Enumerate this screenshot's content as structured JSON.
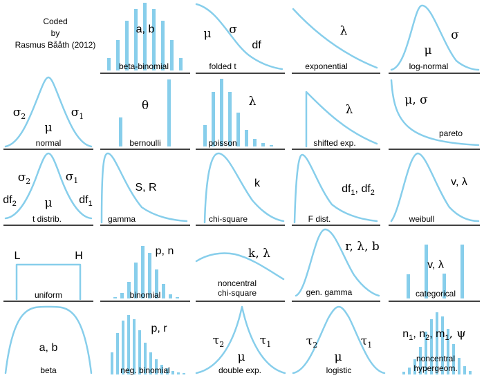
{
  "credit": {
    "line1": "Coded",
    "line2": "by",
    "line3": "Rasmus Bååth (2012)"
  },
  "colors": {
    "shape": "#87CEEB",
    "text": "#000000",
    "line": "#000000"
  },
  "cells": [
    {
      "id": "beta-binomial",
      "label": "beta-binomial",
      "params": [
        {
          "t": "a, b"
        }
      ]
    },
    {
      "id": "folded-t",
      "label": "folded t",
      "params": [
        {
          "t": "μ"
        },
        {
          "t": "σ"
        },
        {
          "t": "df"
        }
      ]
    },
    {
      "id": "exponential",
      "label": "exponential",
      "params": [
        {
          "t": "λ"
        }
      ]
    },
    {
      "id": "log-normal",
      "label": "log-normal",
      "params": [
        {
          "t": "μ"
        },
        {
          "t": "σ"
        }
      ]
    },
    {
      "id": "normal",
      "label": "normal",
      "params": [
        {
          "t": "σ",
          "sub": "2"
        },
        {
          "t": "σ",
          "sub": "1"
        },
        {
          "t": "μ"
        }
      ]
    },
    {
      "id": "bernoulli",
      "label": "bernoulli",
      "params": [
        {
          "t": "θ"
        }
      ]
    },
    {
      "id": "poisson",
      "label": "poisson",
      "params": [
        {
          "t": "λ"
        }
      ]
    },
    {
      "id": "shifted-exp",
      "label": "shifted exp.",
      "params": [
        {
          "t": "λ"
        }
      ]
    },
    {
      "id": "pareto",
      "label": "pareto",
      "params": [
        {
          "t": "μ, σ"
        }
      ]
    },
    {
      "id": "t-distrib",
      "label": "t distrib.",
      "params": [
        {
          "t": "σ",
          "sub": "2"
        },
        {
          "t": "σ",
          "sub": "1"
        },
        {
          "t": "df",
          "sub": "2"
        },
        {
          "t": "μ"
        },
        {
          "t": "df",
          "sub": "1"
        }
      ]
    },
    {
      "id": "gamma",
      "label": "gamma",
      "params": [
        {
          "t": "S, R"
        }
      ]
    },
    {
      "id": "chi-square",
      "label": "chi-square",
      "params": [
        {
          "t": "k"
        }
      ]
    },
    {
      "id": "f-dist",
      "label": "F dist.",
      "params": [
        {
          "t": "df",
          "sub": "1"
        },
        {
          "t": ", "
        },
        {
          "t": "df",
          "sub": "2"
        }
      ]
    },
    {
      "id": "weibull",
      "label": "weibull",
      "params": [
        {
          "t": "v, λ"
        }
      ]
    },
    {
      "id": "uniform",
      "label": "uniform",
      "params": [
        {
          "t": "L"
        },
        {
          "t": "H"
        }
      ]
    },
    {
      "id": "binomial",
      "label": "binomial",
      "params": [
        {
          "t": "p, n"
        }
      ]
    },
    {
      "id": "noncentral-chi-square",
      "label": "noncentral",
      "label2": "chi-square",
      "params": [
        {
          "t": "k, λ"
        }
      ]
    },
    {
      "id": "gen-gamma",
      "label": "gen. gamma",
      "params": [
        {
          "t": "r, λ, b"
        }
      ]
    },
    {
      "id": "categorical",
      "label": "categorical",
      "params": [
        {
          "t": "v, λ"
        }
      ]
    },
    {
      "id": "beta",
      "label": "beta",
      "params": [
        {
          "t": "a, b"
        }
      ]
    },
    {
      "id": "neg-binomial",
      "label": "neg. binomial",
      "params": [
        {
          "t": "p, r"
        }
      ]
    },
    {
      "id": "double-exp",
      "label": "double exp.",
      "params": [
        {
          "t": "τ",
          "sub": "2"
        },
        {
          "t": "τ",
          "sub": "1"
        },
        {
          "t": "μ"
        }
      ]
    },
    {
      "id": "logistic",
      "label": "logistic",
      "params": [
        {
          "t": "τ",
          "sub": "2"
        },
        {
          "t": "τ",
          "sub": "1"
        },
        {
          "t": "μ"
        }
      ]
    },
    {
      "id": "noncentral-hypergeom",
      "label": "noncentral",
      "label2": "hypergeom.",
      "params": [
        {
          "t": "n",
          "sub": "1"
        },
        {
          "t": ", n",
          "sub": "2"
        },
        {
          "t": ", m",
          "sub": "1"
        },
        {
          "t": ", ψ"
        }
      ]
    }
  ]
}
